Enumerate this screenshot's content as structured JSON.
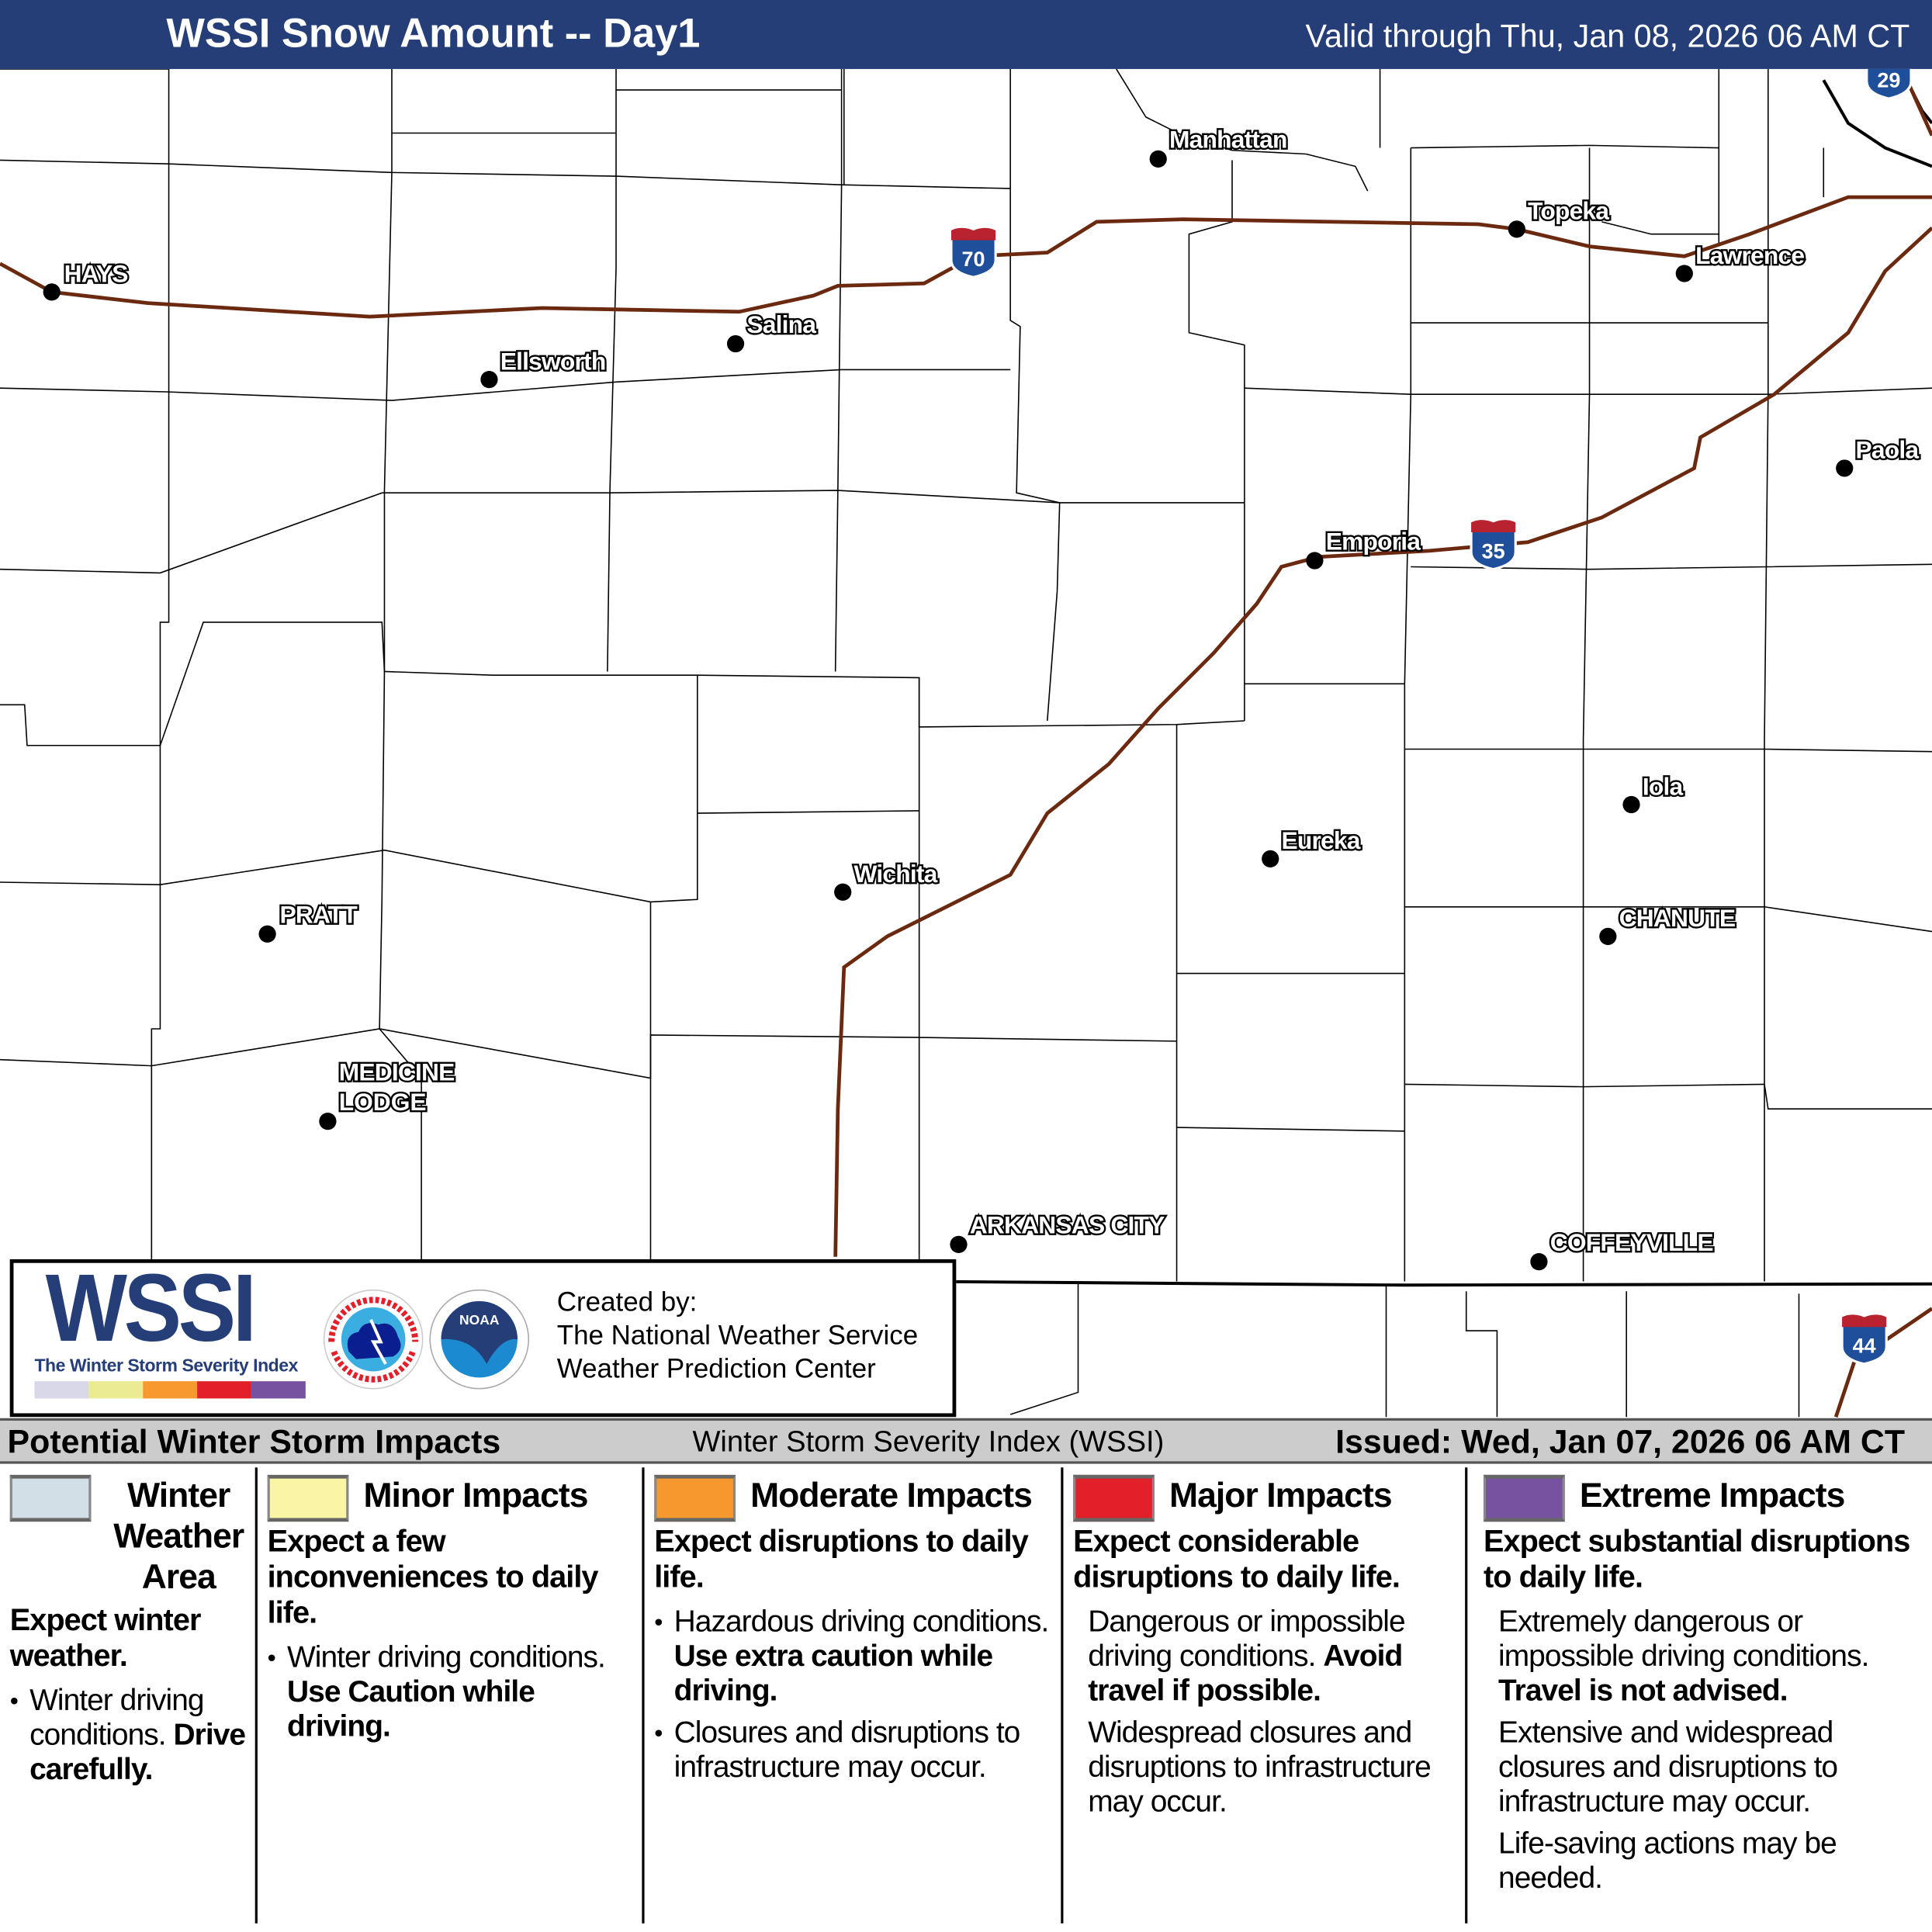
{
  "header": {
    "title": "WSSI Snow Amount -- Day1",
    "valid": "Valid through Thu, Jan 08, 2026 06 AM CT",
    "background": "#253e78"
  },
  "map": {
    "cities": [
      {
        "name": "HAYS"
      },
      {
        "name": "Ellsworth"
      },
      {
        "name": "Salina"
      },
      {
        "name": "Manhattan"
      },
      {
        "name": "Topeka"
      },
      {
        "name": "Lawrence"
      },
      {
        "name": "Paola"
      },
      {
        "name": "Emporia"
      },
      {
        "name": "Iola"
      },
      {
        "name": "Eureka"
      },
      {
        "name": "Wichita"
      },
      {
        "name": "PRATT"
      },
      {
        "name": "CHANUTE"
      },
      {
        "name": "MEDICINE",
        "name2": "LODGE"
      },
      {
        "name": "ARKANSAS CITY"
      },
      {
        "name": "COFFEYVILLE"
      }
    ],
    "shields": [
      {
        "number": "70",
        "type": "interstate"
      },
      {
        "number": "35",
        "type": "interstate"
      },
      {
        "number": "29",
        "type": "interstate"
      },
      {
        "number": "44",
        "type": "interstate"
      }
    ],
    "road_color": "#6b2a10"
  },
  "credit": {
    "logo_word": "WSSI",
    "logo_tm": "TM",
    "logo_sub": "The Winter Storm Severity Index",
    "bar_colors": [
      "#d9d8e8",
      "#ebeb94",
      "#f7992f",
      "#e3202a",
      "#7652a0"
    ],
    "nws_text": "NATIONAL WEATHER SERVICE",
    "noaa_text": "NOAA",
    "created_by": "Created by:",
    "org1": "The National Weather Service",
    "org2": "Weather Prediction Center"
  },
  "bar": {
    "left": "Potential Winter Storm Impacts",
    "middle": "Winter Storm Severity Index (WSSI)",
    "right": "Issued: Wed, Jan 07, 2026 06 AM CT"
  },
  "legend": [
    {
      "title": "Winter Weather Area",
      "color": "#d3dfe7",
      "headline": "Expect winter weather.",
      "items": [
        {
          "text": "Winter driving conditions.",
          "bold": "Drive carefully."
        }
      ]
    },
    {
      "title": "Minor Impacts",
      "color": "#faf5a5",
      "headline": "Expect a few inconveniences to daily life.",
      "items": [
        {
          "text": "Winter driving conditions.",
          "bold": "Use Caution while driving."
        }
      ]
    },
    {
      "title": "Moderate Impacts",
      "color": "#f7982f",
      "headline": "Expect disruptions to daily life.",
      "items": [
        {
          "text": "Hazardous driving conditions.",
          "bold": "Use extra caution while driving."
        },
        {
          "text": "Closures and disruptions to infrastructure may occur.",
          "bold": ""
        }
      ]
    },
    {
      "title": "Major Impacts",
      "color": "#e3202a",
      "headline": "Expect considerable disruptions to daily life.",
      "items": [
        {
          "text": "Dangerous or impossible driving conditions.",
          "bold": "Avoid travel if possible."
        },
        {
          "text": "Widespread closures and disruptions to infrastructure may occur.",
          "bold": ""
        }
      ]
    },
    {
      "title": "Extreme Impacts",
      "color": "#7652a0",
      "headline": "Expect substantial disruptions to daily life.",
      "items": [
        {
          "text": "Extremely dangerous or impossible driving conditions.",
          "bold": "Travel is not advised."
        },
        {
          "text": "Extensive and widespread closures and disruptions to infrastructure may occur.",
          "bold": ""
        },
        {
          "text": "Life-saving actions may be needed.",
          "bold": ""
        }
      ]
    }
  ]
}
